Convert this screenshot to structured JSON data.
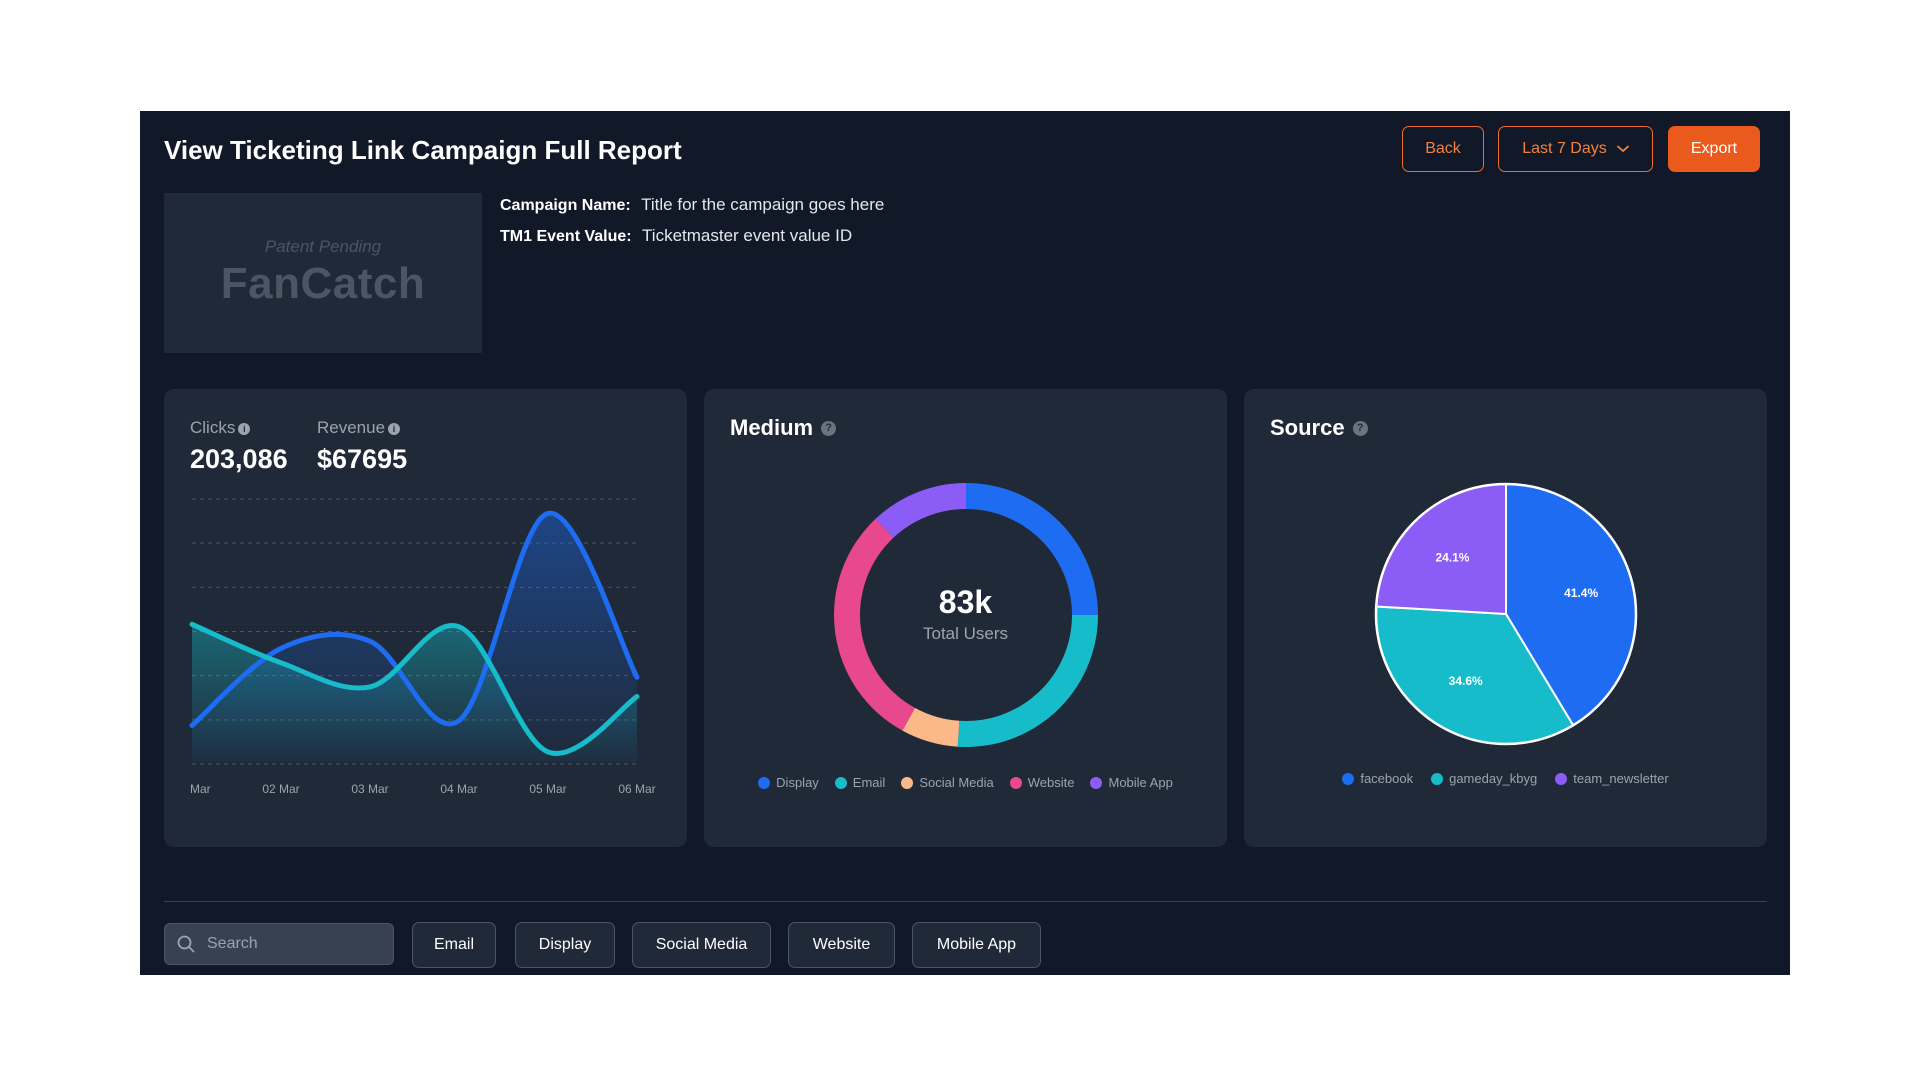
{
  "header": {
    "title": "View Ticketing Link Campaign Full Report",
    "back_label": "Back",
    "range_label": "Last 7 Days",
    "export_label": "Export"
  },
  "logo": {
    "tagline": "Patent Pending",
    "wordmark": "FanCatch"
  },
  "campaign": {
    "name_label": "Campaign Name:",
    "name_value": "Title for the campaign goes here",
    "event_label": "TM1 Event Value:",
    "event_value": "Ticketmaster event value ID"
  },
  "stats": {
    "clicks_label": "Clicks",
    "clicks_value": "203,086",
    "revenue_label": "Revenue",
    "revenue_value": "$67695"
  },
  "medium": {
    "title": "Medium",
    "center_value": "83k",
    "center_label": "Total Users"
  },
  "source": {
    "title": "Source"
  },
  "colors": {
    "display": "#1d6cf2",
    "email": "#17bccb",
    "social_media": "#fdb88a",
    "website": "#e8488e",
    "mobile_app": "#8b5cf6",
    "accent": "#ea5a1c"
  },
  "chart_data": [
    {
      "type": "area",
      "x": [
        "Mar",
        "02 Mar",
        "03 Mar",
        "04 Mar",
        "05 Mar",
        "06 Mar"
      ],
      "series": [
        {
          "values": [
            6,
            38,
            41,
            8,
            94,
            26
          ],
          "color": "#1d6cf2"
        },
        {
          "values": [
            48,
            32,
            22,
            47,
            -5,
            18
          ],
          "color": "#17bccb"
        }
      ],
      "ylim": [
        -10,
        100
      ],
      "grid": true
    },
    {
      "type": "pie",
      "variant": "donut",
      "labels": [
        "Display",
        "Email",
        "Social Media",
        "Website",
        "Mobile App"
      ],
      "values": [
        25,
        26,
        7,
        30,
        12
      ],
      "colors": [
        "#1d6cf2",
        "#17bccb",
        "#fdb88a",
        "#e8488e",
        "#8b5cf6"
      ],
      "legend": "bottom"
    },
    {
      "type": "pie",
      "labels": [
        "facebook",
        "gameday_kbyg",
        "team_newsletter"
      ],
      "values": [
        41.4,
        34.6,
        24.1
      ],
      "value_labels": [
        "41.4%",
        "34.6%",
        "24.1%"
      ],
      "colors": [
        "#1d6cf2",
        "#17bccb",
        "#8b5cf6"
      ],
      "legend": "bottom"
    }
  ],
  "search": {
    "placeholder": "Search"
  },
  "filters": [
    "Email",
    "Display",
    "Social Media",
    "Website",
    "Mobile App"
  ]
}
